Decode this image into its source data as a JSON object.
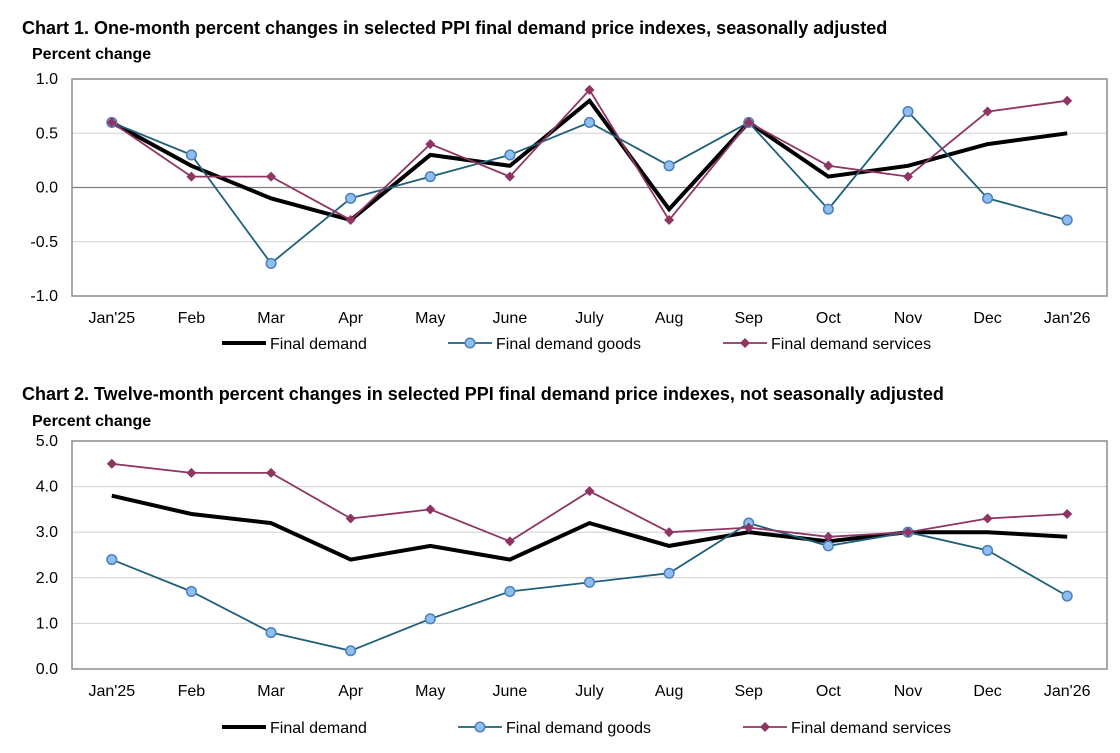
{
  "chart_data": [
    {
      "type": "line",
      "title": "Chart 1. One-month percent changes in selected PPI final demand price indexes, seasonally adjusted",
      "ylabel": "Percent change",
      "xlabel": "",
      "ylim": [
        -1.0,
        1.0
      ],
      "yticks": [
        "1.0",
        "0.5",
        "0.0",
        "-0.5",
        "-1.0"
      ],
      "grid": true,
      "legend": "bottom",
      "categories": [
        "Jan'25",
        "Feb",
        "Mar",
        "Apr",
        "May",
        "June",
        "July",
        "Aug",
        "Sep",
        "Oct",
        "Nov",
        "Dec",
        "Jan'26"
      ],
      "series": [
        {
          "name": "Final demand",
          "color": "#000000",
          "marker": "none",
          "values": [
            0.6,
            0.2,
            -0.1,
            -0.3,
            0.3,
            0.2,
            0.8,
            -0.2,
            0.6,
            0.1,
            0.2,
            0.4,
            0.5
          ]
        },
        {
          "name": "Final demand goods",
          "color": "#1f5f7a",
          "marker": "circle",
          "marker_fill": "#8fbfef",
          "values": [
            0.6,
            0.3,
            -0.7,
            -0.1,
            0.1,
            0.3,
            0.6,
            0.2,
            0.6,
            -0.2,
            0.7,
            -0.1,
            -0.3
          ]
        },
        {
          "name": "Final demand services",
          "color": "#8e3563",
          "marker": "diamond",
          "values": [
            0.6,
            0.1,
            0.1,
            -0.3,
            0.4,
            0.1,
            0.9,
            -0.3,
            0.6,
            0.2,
            0.1,
            0.7,
            0.8
          ]
        }
      ]
    },
    {
      "type": "line",
      "title": "Chart 2. Twelve-month percent changes in selected PPI final demand price indexes, not seasonally adjusted",
      "ylabel": "Percent change",
      "xlabel": "",
      "ylim": [
        0.0,
        5.0
      ],
      "yticks": [
        "5.0",
        "4.0",
        "3.0",
        "2.0",
        "1.0",
        "0.0"
      ],
      "grid": true,
      "legend": "bottom",
      "categories": [
        "Jan'25",
        "Feb",
        "Mar",
        "Apr",
        "May",
        "June",
        "July",
        "Aug",
        "Sep",
        "Oct",
        "Nov",
        "Dec",
        "Jan'26"
      ],
      "series": [
        {
          "name": "Final demand",
          "color": "#000000",
          "marker": "none",
          "values": [
            3.8,
            3.4,
            3.2,
            2.4,
            2.7,
            2.4,
            3.2,
            2.7,
            3.0,
            2.8,
            3.0,
            3.0,
            2.9
          ]
        },
        {
          "name": "Final demand goods",
          "color": "#1f5f7a",
          "marker": "circle",
          "marker_fill": "#8fbfef",
          "values": [
            2.4,
            1.7,
            0.8,
            0.4,
            1.1,
            1.7,
            1.9,
            2.1,
            3.2,
            2.7,
            3.0,
            2.6,
            1.6
          ]
        },
        {
          "name": "Final demand services",
          "color": "#8e3563",
          "marker": "diamond",
          "values": [
            4.5,
            4.3,
            4.3,
            3.3,
            3.5,
            2.8,
            3.9,
            3.0,
            3.1,
            2.9,
            3.0,
            3.3,
            3.4
          ]
        }
      ]
    }
  ]
}
